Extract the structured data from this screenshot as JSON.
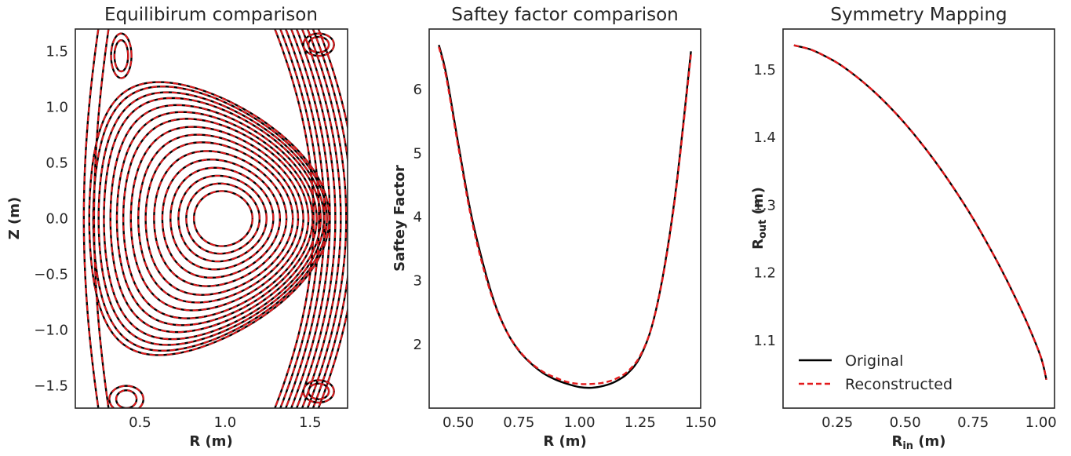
{
  "colors": {
    "original": "#000000",
    "reconstructed": "#e31a1c",
    "axis": "#262626"
  },
  "chart_data": [
    {
      "type": "contour",
      "title": "Equilibirum comparison",
      "xlabel": "R (m)",
      "ylabel": "Z (m)",
      "xlim": [
        0.12,
        1.72
      ],
      "ylim": [
        -1.7,
        1.7
      ],
      "xticks": [
        0.5,
        1.0,
        1.5
      ],
      "xtick_labels": [
        "0.5",
        "1.0",
        "1.5"
      ],
      "yticks": [
        1.5,
        1.0,
        0.5,
        0.0,
        -0.5,
        -1.0,
        -1.5
      ],
      "ytick_labels": [
        "1.5",
        "1.0",
        "0.5",
        "0.0",
        "−0.5",
        "−1.0",
        "−1.5"
      ],
      "grid": false,
      "magnetic_axis": [
        0.99,
        0.0
      ],
      "x_points": [
        [
          0.4,
          1.45
        ],
        [
          0.4,
          -1.45
        ]
      ],
      "series": [
        {
          "name": "Original",
          "style": "solid",
          "color": "#000000"
        },
        {
          "name": "Reconstructed",
          "style": "dashed",
          "color": "#e31a1c"
        }
      ]
    },
    {
      "type": "line",
      "title": "Saftey factor comparison",
      "xlabel": "R (m)",
      "ylabel": "Saftey Factor",
      "xlim": [
        0.38,
        1.5
      ],
      "ylim": [
        1.0,
        6.95
      ],
      "xticks": [
        0.5,
        0.75,
        1.0,
        1.25,
        1.5
      ],
      "xtick_labels": [
        "0.50",
        "0.75",
        "1.00",
        "1.25",
        "1.50"
      ],
      "yticks": [
        2,
        3,
        4,
        5,
        6
      ],
      "ytick_labels": [
        "2",
        "3",
        "4",
        "5",
        "6"
      ],
      "grid": false,
      "series": [
        {
          "name": "Original",
          "style": "solid",
          "color": "#000000",
          "x": [
            0.42,
            0.45,
            0.5,
            0.55,
            0.6,
            0.65,
            0.7,
            0.75,
            0.8,
            0.85,
            0.9,
            0.95,
            1.0,
            1.05,
            1.1,
            1.15,
            1.2,
            1.25,
            1.3,
            1.35,
            1.4,
            1.46
          ],
          "y": [
            6.7,
            6.25,
            5.15,
            4.1,
            3.3,
            2.65,
            2.2,
            1.9,
            1.7,
            1.55,
            1.45,
            1.38,
            1.33,
            1.32,
            1.35,
            1.42,
            1.55,
            1.8,
            2.3,
            3.2,
            4.5,
            6.6
          ]
        },
        {
          "name": "Reconstructed",
          "style": "dashed",
          "color": "#e31a1c",
          "x": [
            0.42,
            0.45,
            0.5,
            0.55,
            0.6,
            0.65,
            0.7,
            0.75,
            0.8,
            0.85,
            0.9,
            0.95,
            1.0,
            1.05,
            1.1,
            1.15,
            1.2,
            1.25,
            1.3,
            1.35,
            1.4,
            1.46
          ],
          "y": [
            6.67,
            6.2,
            5.1,
            4.05,
            3.25,
            2.63,
            2.2,
            1.91,
            1.71,
            1.57,
            1.48,
            1.41,
            1.38,
            1.38,
            1.4,
            1.46,
            1.58,
            1.82,
            2.3,
            3.18,
            4.47,
            6.55
          ]
        }
      ]
    },
    {
      "type": "line",
      "title": "Symmetry Mapping",
      "xlabel": "R",
      "xlabel_sub": "in",
      "xlabel_unit": " (m)",
      "ylabel": "R",
      "ylabel_sub": "out",
      "ylabel_unit": " (m)",
      "xlim": [
        0.05,
        1.05
      ],
      "ylim": [
        1.0,
        1.56
      ],
      "xticks": [
        0.25,
        0.5,
        0.75,
        1.0
      ],
      "xtick_labels": [
        "0.25",
        "0.50",
        "0.75",
        "1.00"
      ],
      "yticks": [
        1.1,
        1.2,
        1.3,
        1.4,
        1.5
      ],
      "ytick_labels": [
        "1.1",
        "1.2",
        "1.3",
        "1.4",
        "1.5"
      ],
      "grid": false,
      "legend": {
        "position": "lower-left",
        "entries": [
          "Original",
          "Reconstructed"
        ]
      },
      "series": [
        {
          "name": "Original",
          "style": "solid",
          "color": "#000000",
          "x": [
            0.09,
            0.15,
            0.2,
            0.25,
            0.3,
            0.35,
            0.4,
            0.45,
            0.5,
            0.55,
            0.6,
            0.65,
            0.7,
            0.75,
            0.8,
            0.85,
            0.9,
            0.95,
            1.0,
            1.02
          ],
          "y": [
            1.536,
            1.53,
            1.521,
            1.51,
            1.496,
            1.48,
            1.462,
            1.442,
            1.42,
            1.396,
            1.37,
            1.342,
            1.312,
            1.28,
            1.245,
            1.208,
            1.168,
            1.125,
            1.075,
            1.042
          ]
        },
        {
          "name": "Reconstructed",
          "style": "dashed",
          "color": "#e31a1c",
          "x": [
            0.09,
            0.15,
            0.2,
            0.25,
            0.3,
            0.35,
            0.4,
            0.45,
            0.5,
            0.55,
            0.6,
            0.65,
            0.7,
            0.75,
            0.8,
            0.85,
            0.9,
            0.95,
            1.0,
            1.02
          ],
          "y": [
            1.536,
            1.53,
            1.521,
            1.51,
            1.496,
            1.48,
            1.462,
            1.442,
            1.42,
            1.396,
            1.37,
            1.342,
            1.312,
            1.28,
            1.245,
            1.208,
            1.168,
            1.125,
            1.075,
            1.042
          ]
        }
      ]
    }
  ]
}
